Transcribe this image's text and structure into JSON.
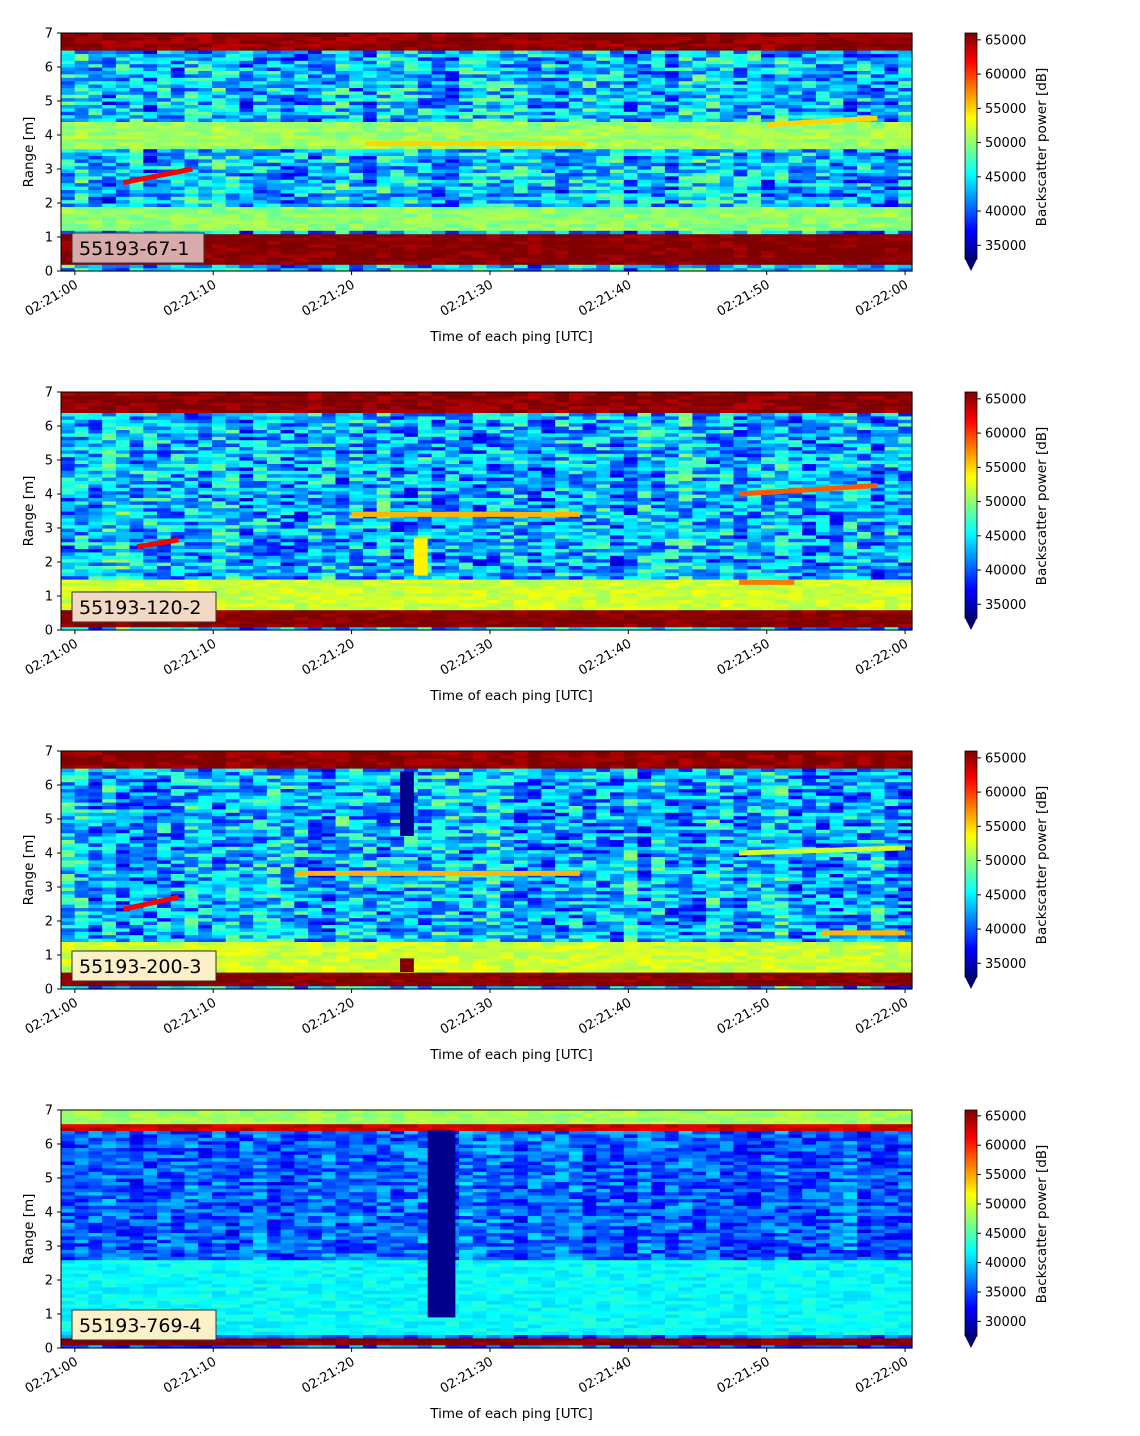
{
  "chart_data": [
    {
      "type": "heatmap",
      "annotation": "55193-67-1",
      "annotation_color": "#d9aaaa",
      "xlabel": "Time of each ping [UTC]",
      "ylabel": "Range [m]",
      "colorbar_label": "Backscatter power [dB]",
      "colormap": "jet",
      "x_ticks": [
        "02:21:00",
        "02:21:10",
        "02:21:20",
        "02:21:30",
        "02:21:40",
        "02:21:50",
        "02:22:00"
      ],
      "x_range_seconds": [
        -1,
        60.5
      ],
      "y_ticks": [
        0,
        1,
        2,
        3,
        4,
        5,
        6,
        7
      ],
      "ylim": [
        0,
        7
      ],
      "color_ticks": [
        35000,
        40000,
        45000,
        50000,
        55000,
        60000,
        65000
      ],
      "clim": [
        33000,
        66000
      ],
      "features": [
        {
          "kind": "band",
          "range_from": 0.2,
          "range_to": 1.1,
          "level": 66000
        },
        {
          "kind": "band",
          "range_from": 6.55,
          "range_to": 7.0,
          "level": 65500
        },
        {
          "kind": "band",
          "range_from": 1.2,
          "range_to": 1.9,
          "level": 50000
        },
        {
          "kind": "band",
          "range_from": 3.6,
          "range_to": 4.4,
          "level": 50500
        },
        {
          "kind": "line",
          "t_from": 3.5,
          "t_to": 8.5,
          "range_from": 2.6,
          "range_to": 3.0,
          "level": 62000
        },
        {
          "kind": "line",
          "t_from": 21,
          "t_to": 37,
          "range_from": 3.75,
          "range_to": 3.75,
          "level": 55000
        },
        {
          "kind": "line",
          "t_from": 50,
          "t_to": 58,
          "range_from": 4.3,
          "range_to": 4.5,
          "level": 55000
        }
      ]
    },
    {
      "type": "heatmap",
      "annotation": "55193-120-2",
      "annotation_color": "#f2d9c4",
      "xlabel": "Time of each ping [UTC]",
      "ylabel": "Range [m]",
      "colorbar_label": "Backscatter power [dB]",
      "colormap": "jet",
      "x_ticks": [
        "02:21:00",
        "02:21:10",
        "02:21:20",
        "02:21:30",
        "02:21:40",
        "02:21:50",
        "02:22:00"
      ],
      "x_range_seconds": [
        -1,
        60.5
      ],
      "y_ticks": [
        0,
        1,
        2,
        3,
        4,
        5,
        6,
        7
      ],
      "ylim": [
        0,
        7
      ],
      "color_ticks": [
        35000,
        40000,
        45000,
        50000,
        55000,
        60000,
        65000
      ],
      "clim": [
        33000,
        66000
      ],
      "features": [
        {
          "kind": "band",
          "range_from": 0.1,
          "range_to": 0.55,
          "level": 66000
        },
        {
          "kind": "band",
          "range_from": 6.45,
          "range_to": 7.0,
          "level": 65500
        },
        {
          "kind": "band",
          "range_from": 0.6,
          "range_to": 1.5,
          "level": 52000
        },
        {
          "kind": "line",
          "t_from": 20,
          "t_to": 36.5,
          "range_from": 3.4,
          "range_to": 3.4,
          "level": 56000
        },
        {
          "kind": "line",
          "t_from": 4.5,
          "t_to": 7.5,
          "range_from": 2.45,
          "range_to": 2.65,
          "level": 62000
        },
        {
          "kind": "line",
          "t_from": 48,
          "t_to": 58,
          "range_from": 4.0,
          "range_to": 4.25,
          "level": 59000
        },
        {
          "kind": "line",
          "t_from": 48,
          "t_to": 52,
          "range_from": 1.4,
          "range_to": 1.4,
          "level": 58000
        },
        {
          "kind": "column",
          "t_from": 24.5,
          "t_to": 25.5,
          "range_from": 1.6,
          "range_to": 2.7,
          "level": 54000
        }
      ]
    },
    {
      "type": "heatmap",
      "annotation": "55193-200-3",
      "annotation_color": "#fbf0c8",
      "xlabel": "Time of each ping [UTC]",
      "ylabel": "Range [m]",
      "colorbar_label": "Backscatter power [dB]",
      "colormap": "jet",
      "x_ticks": [
        "02:21:00",
        "02:21:10",
        "02:21:20",
        "02:21:30",
        "02:21:40",
        "02:21:50",
        "02:22:00"
      ],
      "x_range_seconds": [
        -1,
        60.5
      ],
      "y_ticks": [
        0,
        1,
        2,
        3,
        4,
        5,
        6,
        7
      ],
      "ylim": [
        0,
        7
      ],
      "color_ticks": [
        35000,
        40000,
        45000,
        50000,
        55000,
        60000,
        65000
      ],
      "clim": [
        33000,
        66000
      ],
      "features": [
        {
          "kind": "band",
          "range_from": 0.1,
          "range_to": 0.45,
          "level": 66000
        },
        {
          "kind": "band",
          "range_from": 6.55,
          "range_to": 7.0,
          "level": 65500
        },
        {
          "kind": "band",
          "range_from": 0.5,
          "range_to": 1.4,
          "level": 52000
        },
        {
          "kind": "line",
          "t_from": 16,
          "t_to": 36.5,
          "range_from": 3.4,
          "range_to": 3.4,
          "level": 56000
        },
        {
          "kind": "line",
          "t_from": 3.5,
          "t_to": 7.5,
          "range_from": 2.35,
          "range_to": 2.7,
          "level": 62000
        },
        {
          "kind": "line",
          "t_from": 48,
          "t_to": 60,
          "range_from": 4.0,
          "range_to": 4.15,
          "level": 52000
        },
        {
          "kind": "line",
          "t_from": 54,
          "t_to": 60,
          "range_from": 1.65,
          "range_to": 1.65,
          "level": 56000
        },
        {
          "kind": "column",
          "t_from": 23.5,
          "t_to": 24.5,
          "range_from": 4.5,
          "range_to": 6.4,
          "level": 33500
        },
        {
          "kind": "column",
          "t_from": 23.5,
          "t_to": 24.5,
          "range_from": 0.5,
          "range_to": 0.9,
          "level": 66000
        }
      ]
    },
    {
      "type": "heatmap",
      "annotation": "55193-769-4",
      "annotation_color": "#fbf0c8",
      "xlabel": "Time of each ping [UTC]",
      "ylabel": "Range [m]",
      "colorbar_label": "Backscatter power [dB]",
      "colormap": "jet",
      "x_ticks": [
        "02:21:00",
        "02:21:10",
        "02:21:20",
        "02:21:30",
        "02:21:40",
        "02:21:50",
        "02:22:00"
      ],
      "x_range_seconds": [
        -1,
        60.5
      ],
      "y_ticks": [
        0,
        1,
        2,
        3,
        4,
        5,
        6,
        7
      ],
      "ylim": [
        0,
        7
      ],
      "color_ticks": [
        30000,
        35000,
        40000,
        45000,
        50000,
        55000,
        60000,
        65000
      ],
      "clim": [
        27500,
        66000
      ],
      "features": [
        {
          "kind": "band",
          "range_from": 0.15,
          "range_to": 0.35,
          "level": 66000
        },
        {
          "kind": "band",
          "range_from": 6.45,
          "range_to": 6.65,
          "level": 63000
        },
        {
          "kind": "band",
          "range_from": 6.65,
          "range_to": 7.0,
          "level": 48000
        },
        {
          "kind": "band",
          "range_from": 0.4,
          "range_to": 2.6,
          "level": 42000
        },
        {
          "kind": "column",
          "t_from": 25.5,
          "t_to": 27.5,
          "range_from": 0.9,
          "range_to": 6.4,
          "level": 28000
        }
      ]
    }
  ]
}
